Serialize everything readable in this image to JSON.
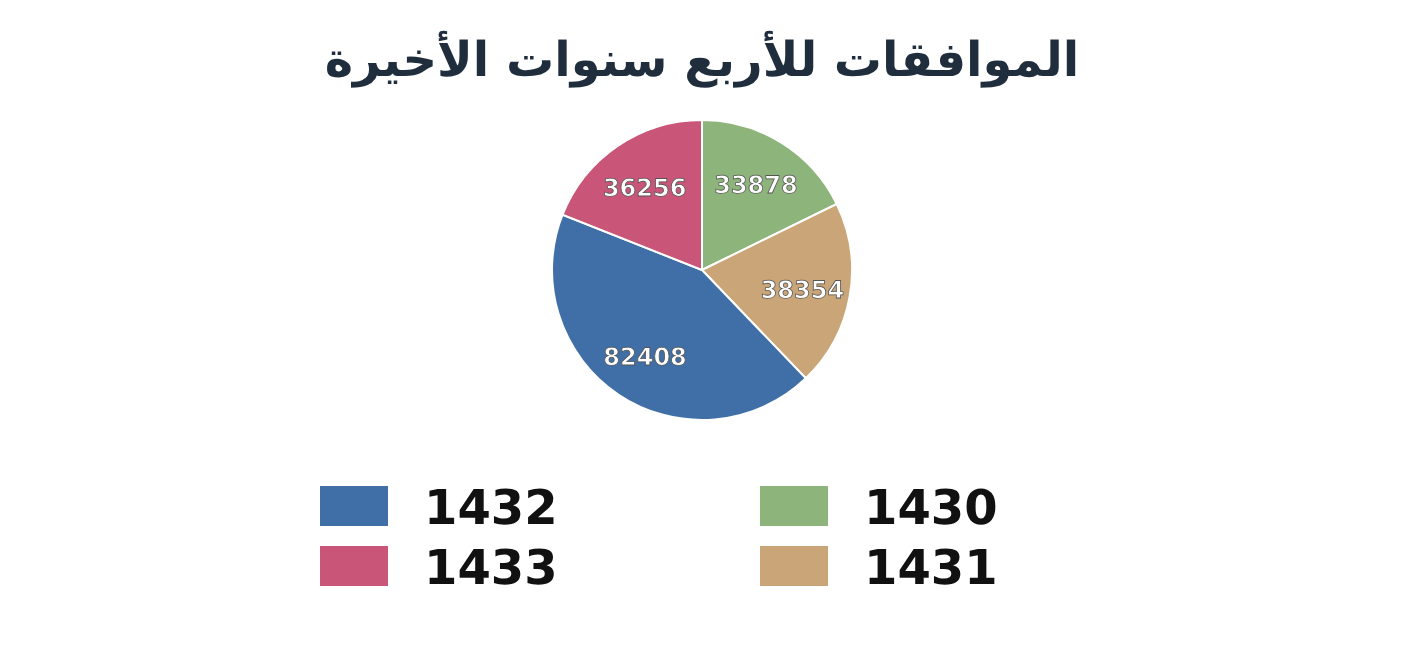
{
  "chart_data": {
    "type": "pie",
    "title": "الموافقات للأربع سنوات الأخيرة",
    "categories": [
      "1430",
      "1431",
      "1432",
      "1433"
    ],
    "values": [
      33878,
      38354,
      82408,
      36256
    ],
    "colors": [
      "#8db47a",
      "#c9a577",
      "#3f6fa6",
      "#c95578"
    ],
    "data_labels": true,
    "legend": "bottom"
  }
}
